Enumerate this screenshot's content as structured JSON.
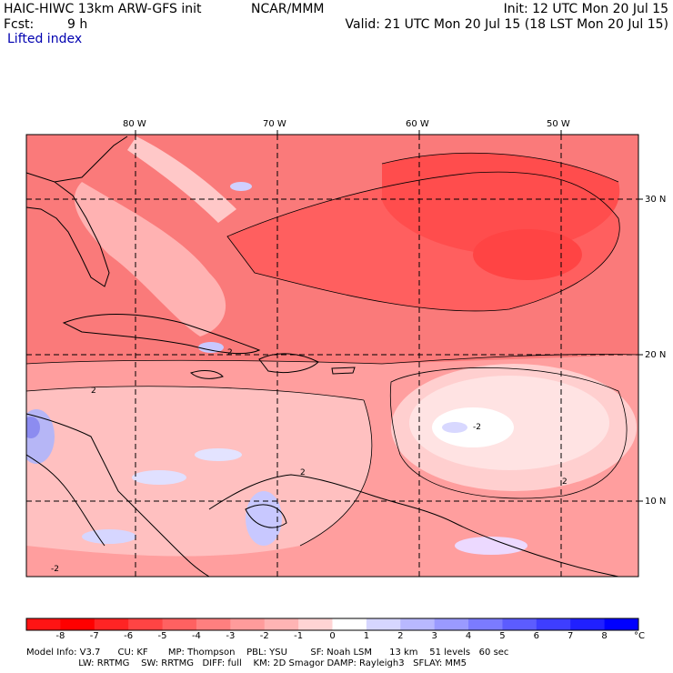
{
  "header": {
    "model": "HAIC-HIWC 13km ARW-GFS init",
    "org": "NCAR/MMM",
    "init": "Init: 12 UTC Mon 20 Jul 15",
    "fcst_label": "Fcst:",
    "fcst_value": "9 h",
    "valid": "Valid: 21 UTC Mon 20 Jul 15 (18 LST Mon 20 Jul 15)",
    "field": "Lifted index"
  },
  "map": {
    "lon_labels": [
      "80 W",
      "70 W",
      "60 W",
      "50 W"
    ],
    "lat_labels": [
      "30 N",
      "20 N",
      "10 N"
    ],
    "contour_labels": [
      "2",
      "2",
      "2",
      "-2",
      "-2",
      "2"
    ],
    "colors": {
      "strong_unstable": "#ff4d4d",
      "unstable": "#fa7a7a",
      "weak_unstable": "#ffc0c0",
      "stable": "#c8c8ff",
      "land_line": "#000000"
    }
  },
  "colorbar": {
    "unit": "°C",
    "labels": [
      "-8",
      "-7",
      "-6",
      "-5",
      "-4",
      "-3",
      "-2",
      "-1",
      "0",
      "1",
      "2",
      "3",
      "4",
      "5",
      "6",
      "7",
      "8"
    ],
    "colors": [
      "#ff0000",
      "#ff2424",
      "#ff4444",
      "#ff6161",
      "#ff7f7f",
      "#ff9b9b",
      "#ffb4b4",
      "#ffd4d4",
      "#ffffff",
      "#d6d6ff",
      "#b8b8ff",
      "#9a9aff",
      "#7b7bff",
      "#5c5cff",
      "#3e3eff",
      "#2020ff",
      "#0000ff"
    ]
  },
  "footer": {
    "line1": "Model Info: V3.7      CU: KF       MP: Thompson    PBL: YSU        SF: Noah LSM      13 km    51 levels   60 sec",
    "line2": "                  LW: RRTMG    SW: RRTMG   DIFF: full    KM: 2D Smagor DAMP: Rayleigh3   SFLAY: MM5"
  }
}
